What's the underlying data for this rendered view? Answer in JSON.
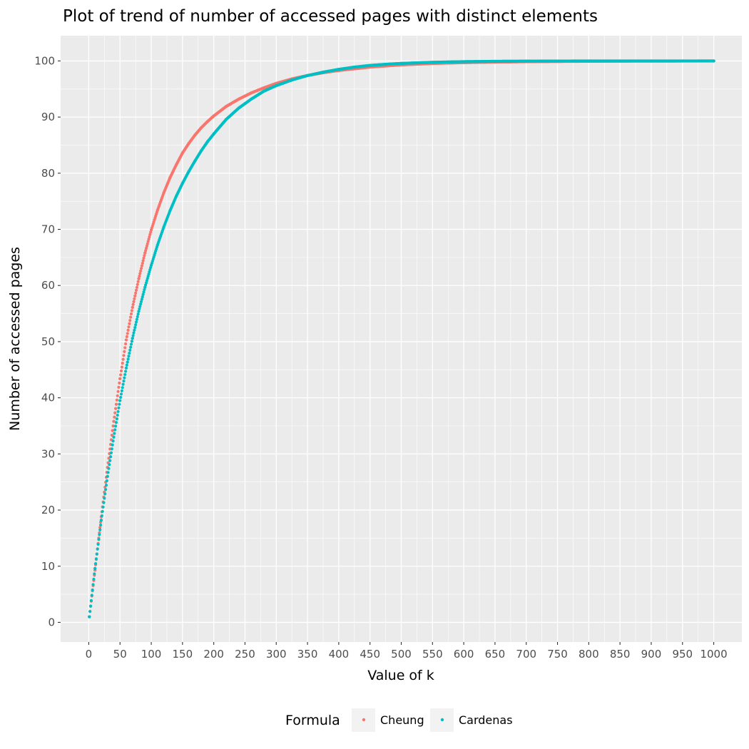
{
  "chart_data": {
    "type": "scatter",
    "title": "Plot of trend of number of accessed pages with distinct elements",
    "xlabel": "Value of k",
    "ylabel": "Number of accessed pages",
    "xlim": [
      -45,
      1045
    ],
    "ylim": [
      -3.5,
      104.5
    ],
    "x_ticks": [
      0,
      50,
      100,
      150,
      200,
      250,
      300,
      350,
      400,
      450,
      500,
      550,
      600,
      650,
      700,
      750,
      800,
      850,
      900,
      950,
      1000
    ],
    "y_ticks": [
      0,
      10,
      20,
      30,
      40,
      50,
      60,
      70,
      80,
      90,
      100
    ],
    "x_tick_labels": [
      "0",
      "50",
      "100",
      "150",
      "200",
      "250",
      "300",
      "350",
      "400",
      "450",
      "500",
      "550",
      "600",
      "650",
      "700",
      "750",
      "800",
      "850",
      "900",
      "950",
      "1000"
    ],
    "y_tick_labels": [
      "0",
      "10",
      "20",
      "30",
      "40",
      "50",
      "60",
      "70",
      "80",
      "90",
      "100"
    ],
    "grid": true,
    "legend_position": "bottom",
    "legend_title": "Formula",
    "series": [
      {
        "name": "Cheung",
        "color": "#F8766D",
        "x": [
          1,
          10,
          20,
          30,
          40,
          50,
          60,
          70,
          80,
          90,
          100,
          110,
          120,
          130,
          140,
          150,
          160,
          170,
          180,
          190,
          200,
          220,
          240,
          260,
          280,
          300,
          325,
          350,
          375,
          400,
          425,
          450,
          475,
          500,
          550,
          600,
          650,
          700,
          750,
          800,
          850,
          900,
          950,
          1000
        ],
        "y": [
          1.0,
          9.3,
          18.8,
          27.6,
          35.8,
          43.4,
          50.3,
          56.1,
          61.2,
          65.8,
          69.9,
          73.4,
          76.5,
          79.2,
          81.5,
          83.6,
          85.3,
          86.8,
          88.1,
          89.2,
          90.2,
          91.9,
          93.2,
          94.3,
          95.2,
          96.0,
          96.8,
          97.4,
          97.9,
          98.3,
          98.6,
          98.9,
          99.1,
          99.3,
          99.55,
          99.7,
          99.8,
          99.87,
          99.91,
          99.94,
          99.96,
          99.97,
          99.98,
          99.99
        ]
      },
      {
        "name": "Cardenas",
        "color": "#00BFC4",
        "x": [
          1,
          10,
          20,
          30,
          40,
          50,
          60,
          70,
          80,
          90,
          100,
          110,
          120,
          130,
          140,
          150,
          160,
          170,
          180,
          190,
          200,
          220,
          240,
          260,
          280,
          300,
          325,
          350,
          375,
          400,
          425,
          450,
          475,
          500,
          550,
          600,
          650,
          700,
          750,
          800,
          850,
          900,
          950,
          1000
        ],
        "y": [
          1.0,
          9.6,
          18.2,
          26.0,
          33.0,
          39.5,
          45.3,
          50.6,
          55.4,
          59.7,
          63.6,
          67.2,
          70.4,
          73.3,
          75.9,
          78.2,
          80.3,
          82.2,
          84.0,
          85.6,
          87.0,
          89.6,
          91.6,
          93.2,
          94.6,
          95.6,
          96.6,
          97.4,
          98.0,
          98.5,
          98.9,
          99.2,
          99.4,
          99.56,
          99.76,
          99.87,
          99.93,
          99.96,
          99.98,
          99.99,
          99.995,
          99.997,
          99.999,
          100.0
        ]
      }
    ]
  }
}
